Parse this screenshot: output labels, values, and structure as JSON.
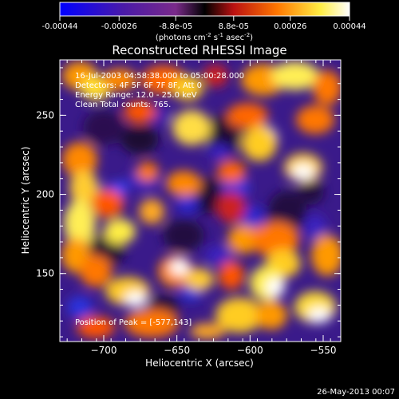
{
  "colorbar": {
    "tick_labels": [
      "-0.00044",
      "-0.00026",
      "-8.8e-05",
      "8.8e-05",
      "0.00026",
      "0.00044"
    ],
    "tick_values": [
      -0.00044,
      -0.00026,
      -8.8e-05,
      8.8e-05,
      0.00026,
      0.00044
    ],
    "range": [
      -0.00044,
      0.00044
    ],
    "unit_main": "(photons cm",
    "unit_sup1": "-2",
    "unit_mid1": " s",
    "unit_sup2": "-1",
    "unit_mid2": " asec",
    "unit_sup3": "-2",
    "unit_end": ")",
    "colors": [
      "#0000ff",
      "#5a1a9a",
      "#8a2a8a",
      "#000000",
      "#cc1111",
      "#ff8800",
      "#ffff66",
      "#ffffff"
    ]
  },
  "chart_data": {
    "type": "heatmap",
    "title": "Reconstructed RHESSI Image",
    "xlabel": "Heliocentric X (arcsec)",
    "ylabel": "Heliocentric Y (arcsec)",
    "xlim": [
      -730,
      -538
    ],
    "ylim": [
      107,
      285
    ],
    "x_ticks": [
      -700,
      -650,
      -600,
      -550
    ],
    "x_tick_labels": [
      "−700",
      "−650",
      "−600",
      "−550"
    ],
    "y_ticks": [
      150,
      200,
      250
    ],
    "y_tick_labels": [
      "150",
      "200",
      "250"
    ],
    "annotations": [
      "16-Jul-2003 04:58:38.000 to 05:00:28.000",
      "Detectors: 4F 5F 6F 7F 8F, Att 0",
      "Energy Range: 12.0 - 25.0 keV",
      "Clean     Total counts: 765."
    ],
    "peak_label": "Position of Peak = [-577,143]",
    "peak": [
      -577,
      143
    ]
  },
  "footer": {
    "date": "26-May-2013 00:07"
  }
}
